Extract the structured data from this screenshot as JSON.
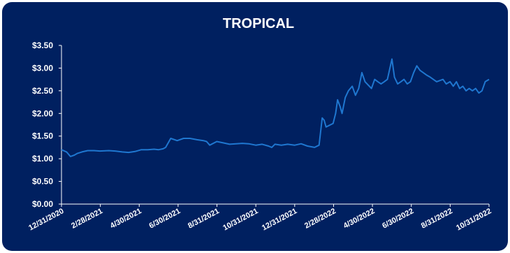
{
  "chart_data": {
    "type": "line",
    "title": "TROPICAL",
    "xlabel": "",
    "ylabel": "",
    "ylim": [
      0,
      3.5
    ],
    "xlim": [
      "2020-12-31",
      "2022-10-31"
    ],
    "y_ticks": [
      "$0.00",
      "$0.50",
      "$1.00",
      "$1.50",
      "$2.00",
      "$2.50",
      "$3.00",
      "$3.50"
    ],
    "x_ticks": [
      "12/31/2020",
      "2/28/2021",
      "4/30/2021",
      "6/30/2021",
      "8/31/2021",
      "10/31/2021",
      "12/31/2021",
      "2/28/2022",
      "4/30/2022",
      "6/30/2022",
      "8/31/2022",
      "10/31/2022"
    ],
    "grid": false,
    "legend": "none",
    "colors": {
      "background": "#002060",
      "line": "#1f77d0",
      "text": "#ffffff",
      "axis": "#ffffff"
    },
    "series": [
      {
        "x": [
          "2020-12-31",
          "2021-01-08",
          "2021-01-14",
          "2021-01-20",
          "2021-01-25",
          "2021-02-01",
          "2021-02-10",
          "2021-02-20",
          "2021-03-01",
          "2021-03-15",
          "2021-03-25",
          "2021-04-05",
          "2021-04-15",
          "2021-04-25",
          "2021-05-05",
          "2021-05-15",
          "2021-05-25",
          "2021-06-01",
          "2021-06-08",
          "2021-06-12",
          "2021-06-20",
          "2021-06-30",
          "2021-07-10",
          "2021-07-20",
          "2021-07-31",
          "2021-08-10",
          "2021-08-15",
          "2021-08-20",
          "2021-08-31",
          "2021-09-10",
          "2021-09-20",
          "2021-09-30",
          "2021-10-10",
          "2021-10-20",
          "2021-10-31",
          "2021-11-10",
          "2021-11-20",
          "2021-11-25",
          "2021-11-30",
          "2021-12-10",
          "2021-12-20",
          "2021-12-31",
          "2022-01-10",
          "2022-01-20",
          "2022-01-31",
          "2022-02-07",
          "2022-02-12",
          "2022-02-15",
          "2022-02-18",
          "2022-02-25",
          "2022-03-01",
          "2022-03-05",
          "2022-03-08",
          "2022-03-12",
          "2022-03-15",
          "2022-03-20",
          "2022-03-25",
          "2022-03-31",
          "2022-04-05",
          "2022-04-10",
          "2022-04-15",
          "2022-04-20",
          "2022-04-30",
          "2022-05-05",
          "2022-05-10",
          "2022-05-15",
          "2022-05-20",
          "2022-05-25",
          "2022-06-01",
          "2022-06-05",
          "2022-06-10",
          "2022-06-15",
          "2022-06-20",
          "2022-06-25",
          "2022-06-30",
          "2022-07-05",
          "2022-07-10",
          "2022-07-15",
          "2022-07-20",
          "2022-07-25",
          "2022-07-31",
          "2022-08-10",
          "2022-08-20",
          "2022-08-25",
          "2022-08-31",
          "2022-09-05",
          "2022-09-10",
          "2022-09-15",
          "2022-09-20",
          "2022-09-25",
          "2022-09-30",
          "2022-10-05",
          "2022-10-10",
          "2022-10-15",
          "2022-10-20",
          "2022-10-25",
          "2022-10-31"
        ],
        "y": [
          1.2,
          1.15,
          1.05,
          1.08,
          1.12,
          1.15,
          1.18,
          1.18,
          1.17,
          1.18,
          1.17,
          1.15,
          1.14,
          1.16,
          1.2,
          1.2,
          1.21,
          1.2,
          1.22,
          1.25,
          1.45,
          1.4,
          1.45,
          1.45,
          1.42,
          1.4,
          1.38,
          1.3,
          1.38,
          1.35,
          1.32,
          1.33,
          1.34,
          1.33,
          1.3,
          1.32,
          1.28,
          1.25,
          1.32,
          1.3,
          1.32,
          1.3,
          1.33,
          1.28,
          1.25,
          1.3,
          1.9,
          1.85,
          1.7,
          1.75,
          1.78,
          2.0,
          2.3,
          2.15,
          2.0,
          2.35,
          2.5,
          2.6,
          2.4,
          2.55,
          2.9,
          2.7,
          2.55,
          2.75,
          2.7,
          2.65,
          2.7,
          2.75,
          3.2,
          2.8,
          2.65,
          2.7,
          2.75,
          2.65,
          2.7,
          2.9,
          3.05,
          2.95,
          2.9,
          2.85,
          2.8,
          2.7,
          2.75,
          2.65,
          2.7,
          2.6,
          2.7,
          2.55,
          2.6,
          2.5,
          2.55,
          2.5,
          2.55,
          2.45,
          2.5,
          2.7,
          2.75
        ]
      }
    ]
  }
}
